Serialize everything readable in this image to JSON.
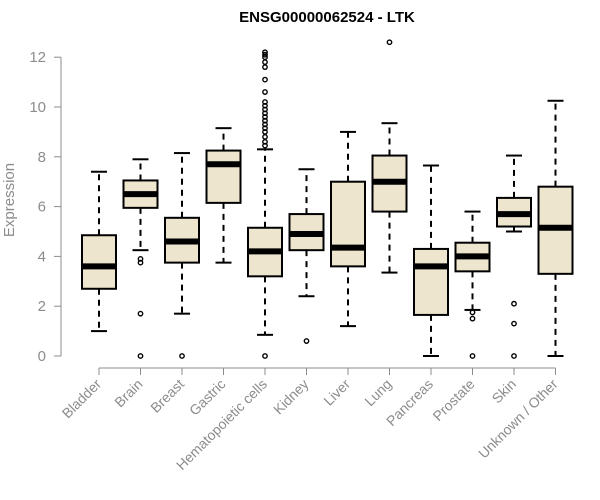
{
  "chart_data": {
    "type": "boxplot",
    "title": "ENSG00000062524 - LTK",
    "xlabel": "",
    "ylabel": "Expression",
    "ylim": [
      0,
      12.5
    ],
    "yticks": [
      0,
      2,
      4,
      6,
      8,
      10,
      12
    ],
    "grid": false,
    "colors": {
      "box_fill": "#ede5cd",
      "stroke": "#000000",
      "axis": "#8c8c8c",
      "text": "#8c8c8c"
    },
    "categories": [
      "Bladder",
      "Brain",
      "Breast",
      "Gastric",
      "Hematopoietic cells",
      "Kidney",
      "Liver",
      "Lung",
      "Pancreas",
      "Prostate",
      "Skin",
      "Unknown / Other"
    ],
    "boxes": [
      {
        "category": "Bladder",
        "whisker_low": 1.0,
        "q1": 2.7,
        "median": 3.6,
        "q3": 4.85,
        "whisker_high": 7.4,
        "outliers": []
      },
      {
        "category": "Brain",
        "whisker_low": 4.25,
        "q1": 5.95,
        "median": 6.5,
        "q3": 7.05,
        "whisker_high": 7.9,
        "outliers": [
          3.75,
          3.9,
          1.7,
          0.0
        ]
      },
      {
        "category": "Breast",
        "whisker_low": 1.7,
        "q1": 3.75,
        "median": 4.6,
        "q3": 5.55,
        "whisker_high": 8.15,
        "outliers": [
          0.0
        ]
      },
      {
        "category": "Gastric",
        "whisker_low": 3.75,
        "q1": 6.15,
        "median": 7.7,
        "q3": 8.25,
        "whisker_high": 9.15,
        "outliers": []
      },
      {
        "category": "Hematopoietic cells",
        "whisker_low": 0.85,
        "q1": 3.2,
        "median": 4.2,
        "q3": 5.15,
        "whisker_high": 8.3,
        "outliers": [
          0.0,
          8.45,
          8.6,
          8.8,
          9.0,
          9.15,
          9.3,
          9.45,
          9.6,
          9.75,
          9.9,
          10.05,
          10.2,
          10.6,
          11.1,
          11.6,
          11.8,
          12.0,
          12.1,
          12.2
        ]
      },
      {
        "category": "Kidney",
        "whisker_low": 2.4,
        "q1": 4.25,
        "median": 4.9,
        "q3": 5.7,
        "whisker_high": 7.5,
        "outliers": [
          0.6
        ]
      },
      {
        "category": "Liver",
        "whisker_low": 1.2,
        "q1": 3.6,
        "median": 4.35,
        "q3": 7.0,
        "whisker_high": 9.0,
        "outliers": []
      },
      {
        "category": "Lung",
        "whisker_low": 3.35,
        "q1": 5.8,
        "median": 7.0,
        "q3": 8.05,
        "whisker_high": 9.35,
        "outliers": [
          12.6
        ]
      },
      {
        "category": "Pancreas",
        "whisker_low": 0.0,
        "q1": 1.65,
        "median": 3.6,
        "q3": 4.3,
        "whisker_high": 7.65,
        "outliers": []
      },
      {
        "category": "Prostate",
        "whisker_low": 1.85,
        "q1": 3.4,
        "median": 4.0,
        "q3": 4.55,
        "whisker_high": 5.8,
        "outliers": [
          1.75,
          1.5,
          0.0
        ]
      },
      {
        "category": "Skin",
        "whisker_low": 5.0,
        "q1": 5.2,
        "median": 5.7,
        "q3": 6.35,
        "whisker_high": 8.05,
        "outliers": [
          2.1,
          1.3,
          0.0
        ]
      },
      {
        "category": "Unknown / Other",
        "whisker_low": 0.0,
        "q1": 3.3,
        "median": 5.15,
        "q3": 6.8,
        "whisker_high": 10.25,
        "outliers": []
      }
    ]
  }
}
